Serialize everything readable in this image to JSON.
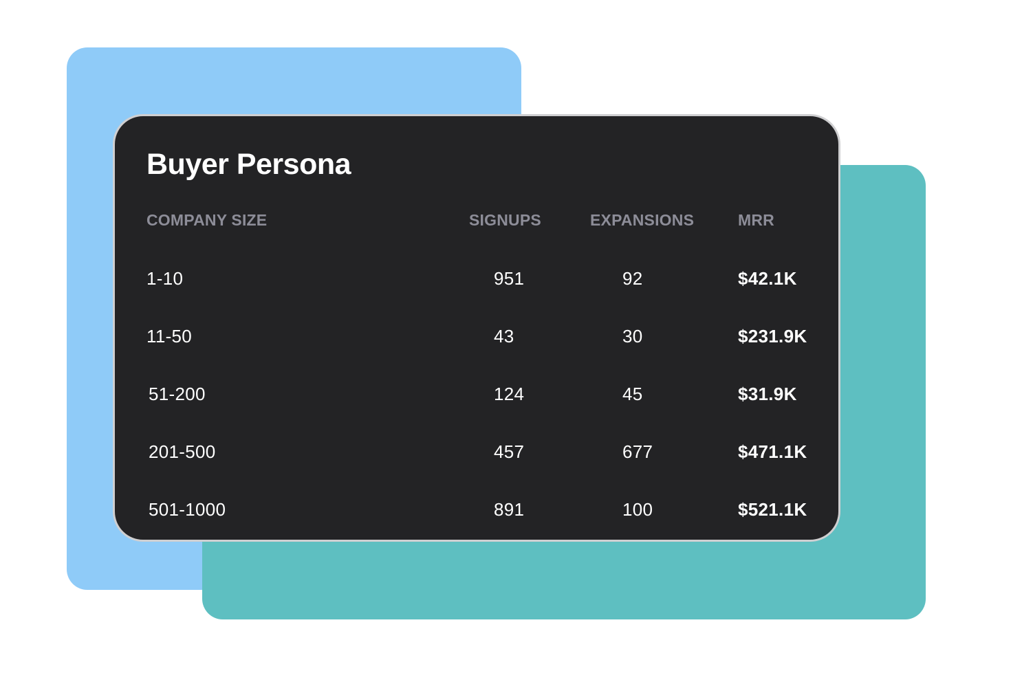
{
  "card": {
    "title": "Buyer Persona",
    "columns": [
      "COMPANY SIZE",
      "SIGNUPS",
      "EXPANSIONS",
      "MRR"
    ],
    "rows": [
      {
        "size": "1-10",
        "signups": "951",
        "expansions": "92",
        "mrr": "$42.1K"
      },
      {
        "size": "11-50",
        "signups": "43",
        "expansions": "30",
        "mrr": "$231.9K"
      },
      {
        "size": "51-200",
        "signups": "124",
        "expansions": "45",
        "mrr": "$31.9K"
      },
      {
        "size": "201-500",
        "signups": "457",
        "expansions": "677",
        "mrr": "$471.1K"
      },
      {
        "size": "501-1000",
        "signups": "891",
        "expansions": "100",
        "mrr": "$521.1K"
      }
    ]
  },
  "colors": {
    "background": "#ffffff",
    "blue_card": "#8fcbf8",
    "teal_card": "#5ebfc1",
    "panel": "#232325",
    "header_text": "#8d8d98"
  }
}
